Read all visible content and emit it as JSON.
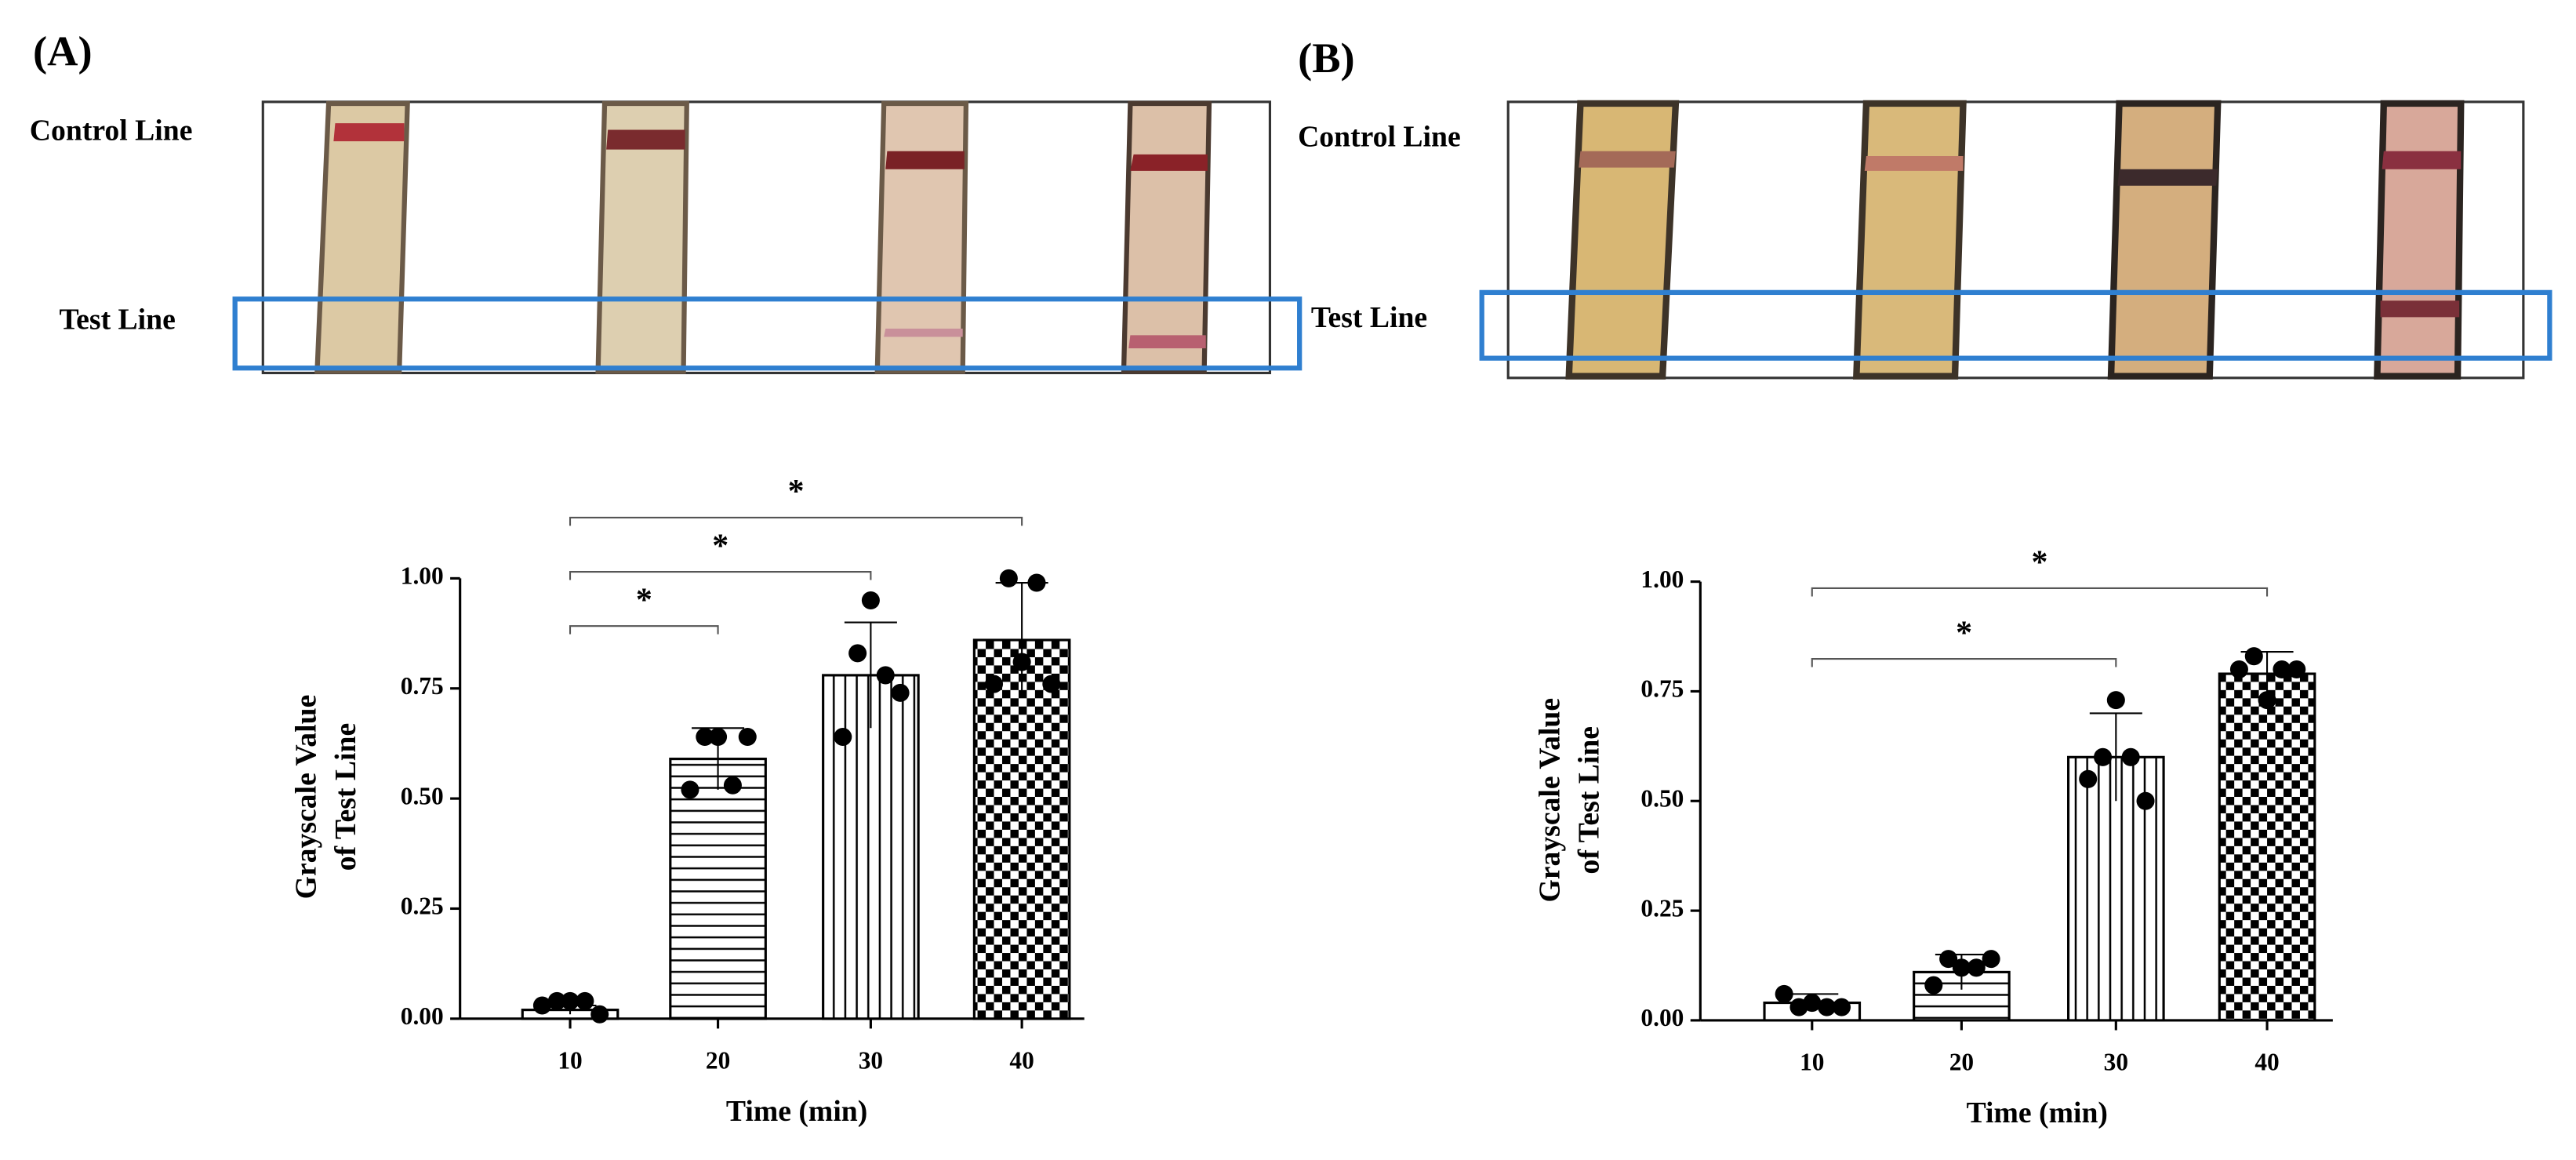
{
  "panel_labels": [
    "(A)",
    "(B)"
  ],
  "strip_labels": {
    "control": "Control Line",
    "test": "Test Line"
  },
  "chart_data": [
    {
      "type": "bar",
      "categories": [
        "10",
        "20",
        "30",
        "40"
      ],
      "values": [
        0.02,
        0.59,
        0.78,
        0.86
      ],
      "errors": [
        0.01,
        0.07,
        0.12,
        0.13
      ],
      "points": [
        [
          0.03,
          0.04,
          0.04,
          0.04,
          0.01
        ],
        [
          0.52,
          0.64,
          0.64,
          0.53,
          0.64
        ],
        [
          0.64,
          0.83,
          0.95,
          0.78,
          0.74
        ],
        [
          0.76,
          1.0,
          0.81,
          0.99,
          0.76
        ]
      ],
      "patterns": [
        "none",
        "horizontal",
        "vertical",
        "checker"
      ],
      "ylim": [
        0,
        1
      ],
      "yticks": [
        {
          "value": 0,
          "label": "0.00"
        },
        {
          "value": 0.25,
          "label": "0.25"
        },
        {
          "value": 0.5,
          "label": "0.50"
        },
        {
          "value": 0.75,
          "label": "0.75"
        },
        {
          "value": 1,
          "label": "1.00"
        }
      ],
      "x_label": "Time (min)",
      "y_label": [
        "Grayscale Value",
        "of Test Line"
      ],
      "annotations": [
        {
          "categories": [
            "10",
            "20"
          ],
          "label": "*"
        },
        {
          "categories": [
            "10",
            "30"
          ],
          "label": "*"
        },
        {
          "categories": [
            "10",
            "40"
          ],
          "label": "*"
        }
      ]
    },
    {
      "type": "bar",
      "categories": [
        "10",
        "20",
        "30",
        "40"
      ],
      "values": [
        0.04,
        0.11,
        0.6,
        0.79
      ],
      "errors": [
        0.02,
        0.04,
        0.1,
        0.05
      ],
      "points": [
        [
          0.06,
          0.03,
          0.04,
          0.03,
          0.03
        ],
        [
          0.08,
          0.14,
          0.12,
          0.12,
          0.14
        ],
        [
          0.55,
          0.6,
          0.73,
          0.6,
          0.5
        ],
        [
          0.8,
          0.83,
          0.73,
          0.8,
          0.8
        ]
      ],
      "patterns": [
        "none",
        "horizontal",
        "vertical",
        "checker"
      ],
      "ylim": [
        0,
        1
      ],
      "yticks": [
        {
          "value": 0,
          "label": "0.00"
        },
        {
          "value": 0.25,
          "label": "0.25"
        },
        {
          "value": 0.5,
          "label": "0.50"
        },
        {
          "value": 0.75,
          "label": "0.75"
        },
        {
          "value": 1,
          "label": "1.00"
        }
      ],
      "x_label": "Time (min)",
      "y_label": [
        "Grayscale Value",
        "of Test Line"
      ],
      "annotations": [
        {
          "categories": [
            "10",
            "30"
          ],
          "label": "*"
        },
        {
          "categories": [
            "10",
            "40"
          ],
          "label": "*"
        }
      ]
    }
  ]
}
